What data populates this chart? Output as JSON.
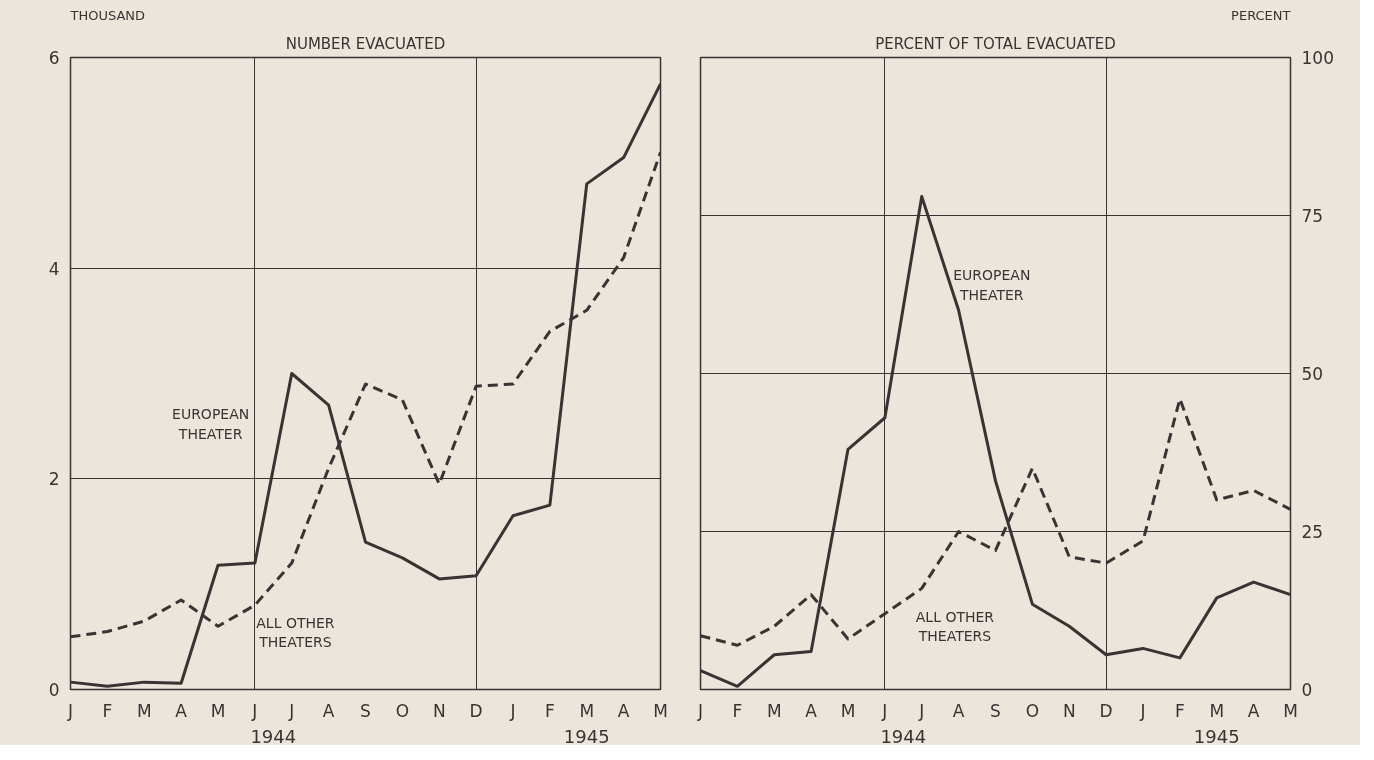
{
  "chart_data": [
    {
      "type": "line",
      "title": "NUMBER EVACUATED",
      "ylabel": "THOUSAND",
      "categories": [
        "J",
        "F",
        "M",
        "A",
        "M",
        "J",
        "J",
        "A",
        "S",
        "O",
        "N",
        "D",
        "J",
        "F",
        "M",
        "A",
        "M"
      ],
      "ylim": [
        0,
        6
      ],
      "yticks": [
        0,
        2,
        4,
        6
      ],
      "grid": true,
      "annotations": [
        "1944",
        "1945"
      ],
      "series": [
        {
          "name": "EUROPEAN THEATER",
          "color": "#3a3333",
          "line_style": "solid",
          "values": [
            0.07,
            0.03,
            0.07,
            0.06,
            1.18,
            1.2,
            3.0,
            2.7,
            1.4,
            1.25,
            1.05,
            1.08,
            1.65,
            1.75,
            4.8,
            5.05,
            5.75
          ]
        },
        {
          "name": "ALL OTHER THEATERS",
          "color": "#3a3333",
          "line_style": "dashed",
          "values": [
            0.5,
            0.55,
            0.65,
            0.85,
            0.6,
            0.8,
            1.2,
            2.1,
            2.9,
            2.75,
            1.95,
            2.88,
            2.9,
            3.4,
            3.6,
            4.1,
            5.1
          ]
        }
      ]
    },
    {
      "type": "line",
      "title": "PERCENT OF TOTAL EVACUATED",
      "ylabel": "PERCENT",
      "categories": [
        "J",
        "F",
        "M",
        "A",
        "M",
        "J",
        "J",
        "A",
        "S",
        "O",
        "N",
        "D",
        "J",
        "F",
        "M",
        "A",
        "M"
      ],
      "ylim": [
        0,
        100
      ],
      "yticks": [
        0,
        25,
        50,
        75,
        100
      ],
      "grid": true,
      "annotations": [
        "1944",
        "1945"
      ],
      "series": [
        {
          "name": "EUROPEAN THEATER",
          "color": "#3a3333",
          "line_style": "solid",
          "values": [
            3,
            0.5,
            5.5,
            6,
            38,
            43,
            78,
            60,
            33,
            13.5,
            10,
            5.5,
            6.5,
            5,
            14.5,
            17,
            15
          ]
        },
        {
          "name": "ALL OTHER THEATERS",
          "color": "#3a3333",
          "line_style": "dashed",
          "values": [
            8.5,
            7,
            10,
            15,
            8,
            12,
            16,
            25,
            22,
            35,
            21,
            20,
            23.5,
            46,
            30,
            31.5,
            28.5
          ]
        }
      ]
    }
  ]
}
